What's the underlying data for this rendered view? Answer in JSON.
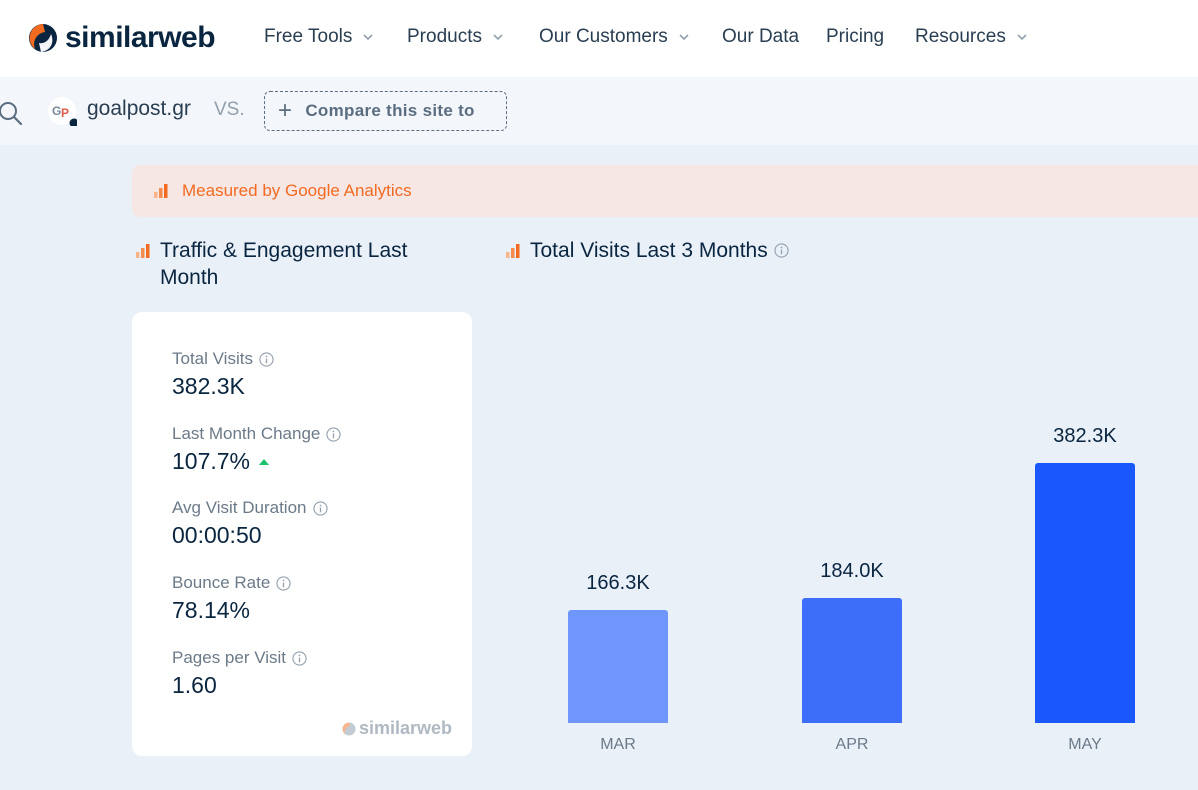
{
  "brand": {
    "name": "similarweb",
    "primary": "#092540",
    "accent": "#f26b21",
    "bar_colors": [
      "#6f96fb",
      "#3c6ef9",
      "#1b58fc"
    ]
  },
  "nav": {
    "items": [
      {
        "label": "Free Tools",
        "has_dropdown": true
      },
      {
        "label": "Products",
        "has_dropdown": true
      },
      {
        "label": "Our Customers",
        "has_dropdown": true
      },
      {
        "label": "Our Data",
        "has_dropdown": false
      },
      {
        "label": "Pricing",
        "has_dropdown": false
      },
      {
        "label": "Resources",
        "has_dropdown": true
      }
    ]
  },
  "compare": {
    "site": "goalpost.gr",
    "vs": "VS.",
    "button_label": "Compare this site to"
  },
  "banner": {
    "text": "Measured by Google Analytics"
  },
  "engagement": {
    "title": "Traffic & Engagement Last Month",
    "metrics": [
      {
        "label": "Total Visits",
        "value": "382.3K"
      },
      {
        "label": "Last Month Change",
        "value": "107.7%",
        "trend": "up"
      },
      {
        "label": "Avg Visit Duration",
        "value": "00:00:50"
      },
      {
        "label": "Bounce Rate",
        "value": "78.14%"
      },
      {
        "label": "Pages per Visit",
        "value": "1.60"
      }
    ],
    "watermark": "similarweb"
  },
  "chart_data": {
    "type": "bar",
    "title": "Total Visits Last 3 Months",
    "categories": [
      "MAR",
      "APR",
      "MAY"
    ],
    "values": [
      166300,
      184000,
      382300
    ],
    "labels": [
      "166.3K",
      "184.0K",
      "382.3K"
    ],
    "xlabel": "",
    "ylabel": "",
    "ylim": [
      0,
      382300
    ],
    "grid": false
  }
}
